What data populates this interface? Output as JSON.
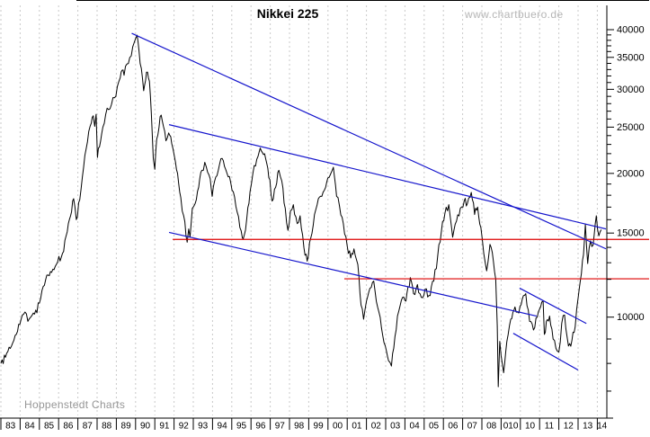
{
  "title": "Nikkei 225",
  "watermark": "www.chartbuero.de",
  "credit": "Hoppenstedt Charts",
  "colors": {
    "price": "#000000",
    "trendline": "#1414cc",
    "support": "#dd0000",
    "grid": "#c9c9c9",
    "axis": "#000000",
    "watermark": "#b5b5b5",
    "credit": "#969696",
    "background": "#ffffff"
  },
  "chart_data": {
    "type": "line",
    "title": "Nikkei 225",
    "scale": "semilog-y",
    "x_unit": "year",
    "x_labels": [
      "83",
      "84",
      "85",
      "86",
      "87",
      "88",
      "89",
      "90",
      "91",
      "92",
      "93",
      "94",
      "95",
      "96",
      "97",
      "98",
      "99",
      "00",
      "01",
      "02",
      "03",
      "04",
      "05",
      "06",
      "07",
      "08",
      "010",
      "10",
      "11",
      "12",
      "13",
      "14"
    ],
    "y_major_ticks": [
      40000,
      35000,
      30000,
      25000,
      20000,
      15000,
      10000
    ],
    "y_minor_tick_range": [
      7000,
      39000
    ],
    "y_minor_tick_step": 1000,
    "y_range_shown": [
      6200,
      41500
    ],
    "series": [
      {
        "name": "Nikkei 225 index (weekly)",
        "points": [
          [
            1983.0,
            8000
          ],
          [
            1983.3,
            8400
          ],
          [
            1983.55,
            8700
          ],
          [
            1983.8,
            9200
          ],
          [
            1984.05,
            9900
          ],
          [
            1984.25,
            10250
          ],
          [
            1984.4,
            9800
          ],
          [
            1984.55,
            10000
          ],
          [
            1984.75,
            10150
          ],
          [
            1985.0,
            10700
          ],
          [
            1985.2,
            11600
          ],
          [
            1985.45,
            12250
          ],
          [
            1985.7,
            12600
          ],
          [
            1985.95,
            13050
          ],
          [
            1986.2,
            13600
          ],
          [
            1986.45,
            15100
          ],
          [
            1986.62,
            16300
          ],
          [
            1986.78,
            17700
          ],
          [
            1986.92,
            16000
          ],
          [
            1987.1,
            17600
          ],
          [
            1987.3,
            20600
          ],
          [
            1987.5,
            23300
          ],
          [
            1987.7,
            25500
          ],
          [
            1987.8,
            26400
          ],
          [
            1987.88,
            25100
          ],
          [
            1987.95,
            26600
          ],
          [
            1988.02,
            21600
          ],
          [
            1988.12,
            22700
          ],
          [
            1988.3,
            25000
          ],
          [
            1988.45,
            26600
          ],
          [
            1988.6,
            27200
          ],
          [
            1988.75,
            27900
          ],
          [
            1988.9,
            28800
          ],
          [
            1989.05,
            30400
          ],
          [
            1989.2,
            31700
          ],
          [
            1989.3,
            32900
          ],
          [
            1989.4,
            32100
          ],
          [
            1989.55,
            33900
          ],
          [
            1989.7,
            35000
          ],
          [
            1989.85,
            36800
          ],
          [
            1990.0,
            38300
          ],
          [
            1990.08,
            38950
          ],
          [
            1990.18,
            36000
          ],
          [
            1990.3,
            33200
          ],
          [
            1990.42,
            29800
          ],
          [
            1990.52,
            31300
          ],
          [
            1990.62,
            32600
          ],
          [
            1990.72,
            31200
          ],
          [
            1990.82,
            26800
          ],
          [
            1990.92,
            21500
          ],
          [
            1991.0,
            20400
          ],
          [
            1991.1,
            23600
          ],
          [
            1991.22,
            25000
          ],
          [
            1991.33,
            26500
          ],
          [
            1991.45,
            25100
          ],
          [
            1991.58,
            23400
          ],
          [
            1991.72,
            24300
          ],
          [
            1991.88,
            23100
          ],
          [
            1992.02,
            21700
          ],
          [
            1992.18,
            20000
          ],
          [
            1992.35,
            17800
          ],
          [
            1992.5,
            16300
          ],
          [
            1992.62,
            14800
          ],
          [
            1992.68,
            14350
          ],
          [
            1992.76,
            15300
          ],
          [
            1992.83,
            14700
          ],
          [
            1992.95,
            16900
          ],
          [
            1993.1,
            17300
          ],
          [
            1993.28,
            18700
          ],
          [
            1993.45,
            20300
          ],
          [
            1993.6,
            21100
          ],
          [
            1993.75,
            20100
          ],
          [
            1993.88,
            19500
          ],
          [
            1993.98,
            17900
          ],
          [
            1994.1,
            19200
          ],
          [
            1994.3,
            20300
          ],
          [
            1994.5,
            21500
          ],
          [
            1994.68,
            20400
          ],
          [
            1994.88,
            19700
          ],
          [
            1995.08,
            18300
          ],
          [
            1995.28,
            16600
          ],
          [
            1995.42,
            15400
          ],
          [
            1995.55,
            14650
          ],
          [
            1995.65,
            14850
          ],
          [
            1995.78,
            16100
          ],
          [
            1995.95,
            18300
          ],
          [
            1996.1,
            20000
          ],
          [
            1996.3,
            21400
          ],
          [
            1996.48,
            22600
          ],
          [
            1996.65,
            21900
          ],
          [
            1996.82,
            21000
          ],
          [
            1996.98,
            19400
          ],
          [
            1997.1,
            17500
          ],
          [
            1997.28,
            18700
          ],
          [
            1997.45,
            20300
          ],
          [
            1997.6,
            19300
          ],
          [
            1997.78,
            16900
          ],
          [
            1997.92,
            15200
          ],
          [
            1998.05,
            16700
          ],
          [
            1998.2,
            17200
          ],
          [
            1998.4,
            15700
          ],
          [
            1998.55,
            16300
          ],
          [
            1998.75,
            14000
          ],
          [
            1998.92,
            13100
          ],
          [
            1999.1,
            14600
          ],
          [
            1999.3,
            16400
          ],
          [
            1999.5,
            17700
          ],
          [
            1999.68,
            17900
          ],
          [
            1999.88,
            18700
          ],
          [
            2000.05,
            19600
          ],
          [
            2000.28,
            20600
          ],
          [
            2000.45,
            17900
          ],
          [
            2000.6,
            17100
          ],
          [
            2000.8,
            15700
          ],
          [
            2001.0,
            14100
          ],
          [
            2001.18,
            13300
          ],
          [
            2001.35,
            13900
          ],
          [
            2001.55,
            12900
          ],
          [
            2001.72,
            10600
          ],
          [
            2001.85,
            9900
          ],
          [
            2002.0,
            10800
          ],
          [
            2002.18,
            11500
          ],
          [
            2002.38,
            11900
          ],
          [
            2002.58,
            10500
          ],
          [
            2002.78,
            9500
          ],
          [
            2002.98,
            8700
          ],
          [
            2003.15,
            8100
          ],
          [
            2003.3,
            7900
          ],
          [
            2003.48,
            9100
          ],
          [
            2003.68,
            10300
          ],
          [
            2003.88,
            11000
          ],
          [
            2004.05,
            10800
          ],
          [
            2004.28,
            12100
          ],
          [
            2004.45,
            11200
          ],
          [
            2004.65,
            11700
          ],
          [
            2004.85,
            11000
          ],
          [
            2005.05,
            11450
          ],
          [
            2005.25,
            11100
          ],
          [
            2005.5,
            11900
          ],
          [
            2005.7,
            13400
          ],
          [
            2005.9,
            15200
          ],
          [
            2006.08,
            16500
          ],
          [
            2006.28,
            17200
          ],
          [
            2006.48,
            14700
          ],
          [
            2006.68,
            15900
          ],
          [
            2006.88,
            16900
          ],
          [
            2007.08,
            17500
          ],
          [
            2007.25,
            17300
          ],
          [
            2007.45,
            18250
          ],
          [
            2007.62,
            16400
          ],
          [
            2007.78,
            17000
          ],
          [
            2007.95,
            15400
          ],
          [
            2008.1,
            13600
          ],
          [
            2008.25,
            12500
          ],
          [
            2008.42,
            14200
          ],
          [
            2008.6,
            13100
          ],
          [
            2008.72,
            12000
          ],
          [
            2008.8,
            9600
          ],
          [
            2008.85,
            7150
          ],
          [
            2008.93,
            8900
          ],
          [
            2009.0,
            8300
          ],
          [
            2009.13,
            7650
          ],
          [
            2009.3,
            8900
          ],
          [
            2009.5,
            9900
          ],
          [
            2009.72,
            10500
          ],
          [
            2009.92,
            10200
          ],
          [
            2010.1,
            10900
          ],
          [
            2010.28,
            11200
          ],
          [
            2010.48,
            9800
          ],
          [
            2010.68,
            9400
          ],
          [
            2010.88,
            10000
          ],
          [
            2011.05,
            10500
          ],
          [
            2011.18,
            10800
          ],
          [
            2011.25,
            9200
          ],
          [
            2011.35,
            9800
          ],
          [
            2011.52,
            10050
          ],
          [
            2011.7,
            9000
          ],
          [
            2011.85,
            8600
          ],
          [
            2012.0,
            8450
          ],
          [
            2012.15,
            9700
          ],
          [
            2012.3,
            10100
          ],
          [
            2012.5,
            8700
          ],
          [
            2012.68,
            8950
          ],
          [
            2012.85,
            9550
          ],
          [
            2013.0,
            10950
          ],
          [
            2013.12,
            11950
          ],
          [
            2013.28,
            13500
          ],
          [
            2013.38,
            15650
          ],
          [
            2013.5,
            12950
          ],
          [
            2013.65,
            14450
          ],
          [
            2013.78,
            14150
          ],
          [
            2013.95,
            16300
          ],
          [
            2014.08,
            14800
          ],
          [
            2014.2,
            15250
          ]
        ]
      }
    ],
    "trendlines": [
      {
        "name": "downtrend-from-1990-peak",
        "p1": [
          1989.8,
          39300
        ],
        "p2": [
          2014.45,
          13900
        ]
      },
      {
        "name": "downtrend-from-1991-high",
        "p1": [
          1991.74,
          25300
        ],
        "p2": [
          2014.45,
          15300
        ]
      },
      {
        "name": "downtrend-along-lows",
        "p1": [
          1991.74,
          15050
        ],
        "p2": [
          2010.85,
          10050
        ]
      },
      {
        "name": "channel-upper-2010-2013",
        "p1": [
          2009.96,
          11500
        ],
        "p2": [
          2013.43,
          9700
        ]
      },
      {
        "name": "channel-lower-2010-2013",
        "p1": [
          2009.63,
          9250
        ],
        "p2": [
          2013.0,
          7750
        ]
      }
    ],
    "support_levels": [
      {
        "name": "horizontal-support-14500",
        "value": 14550,
        "t_start": 1991.93
      },
      {
        "name": "horizontal-support-12000",
        "value": 12030,
        "t_start": 2000.85
      }
    ]
  }
}
